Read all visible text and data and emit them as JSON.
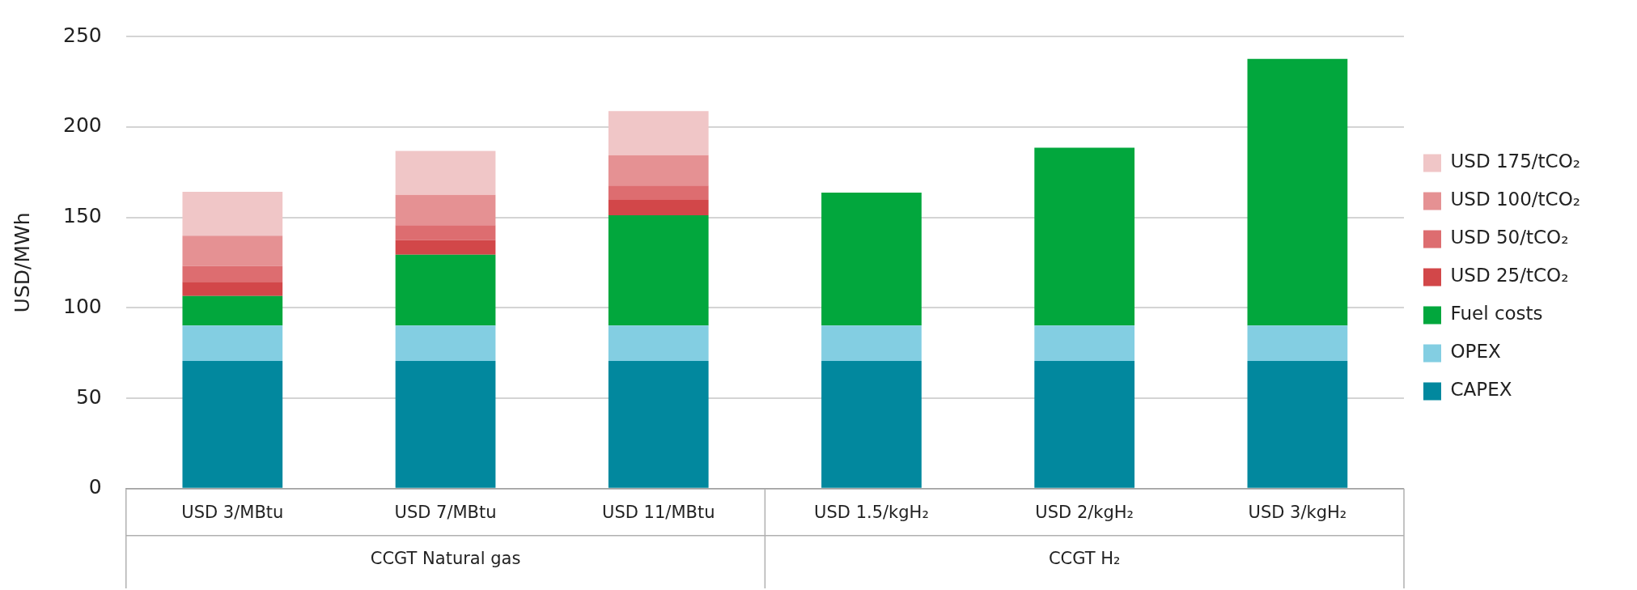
{
  "chart_data": {
    "type": "bar",
    "stacked": true,
    "ylabel": "USD/MWh",
    "categories": [
      "USD 3/MBtu",
      "USD 7/MBtu",
      "USD 11/MBtu",
      "USD 1.5/kgH₂",
      "USD 2/kgH₂",
      "USD 3/kgH₂"
    ],
    "annotations": [
      "CCGT Natural gas",
      "CCGT H₂"
    ],
    "series": [
      {
        "name": "CAPEX",
        "color": "#02889e",
        "values": [
          70.6,
          70.6,
          70.6,
          70.6,
          70.6,
          70.6
        ]
      },
      {
        "name": "OPEX",
        "color": "#83cee2",
        "values": [
          19.6,
          19.6,
          19.6,
          19.6,
          19.6,
          19.6
        ]
      },
      {
        "name": "Fuel costs",
        "color": "#02a73d",
        "values": [
          16.3,
          39.1,
          60.9,
          73.5,
          98.3,
          147.4
        ]
      },
      {
        "name": "USD 25/tCO₂",
        "color": "#d24749",
        "values": [
          7.8,
          8.1,
          8.5,
          null,
          null,
          null
        ]
      },
      {
        "name": "USD 50/tCO₂",
        "color": "#dd6d70",
        "values": [
          8.7,
          8.3,
          8.0,
          null,
          null,
          null
        ]
      },
      {
        "name": "USD 100/tCO₂",
        "color": "#e59193",
        "values": [
          16.8,
          16.7,
          16.7,
          null,
          null,
          null
        ]
      },
      {
        "name": "USD 175/tCO₂",
        "color": "#f0c6c7",
        "values": [
          24.3,
          24.3,
          24.4,
          null,
          null,
          null
        ]
      }
    ],
    "ylim": [
      0,
      250
    ],
    "yticks": [
      0,
      50,
      100,
      150,
      200,
      250
    ],
    "grid": "y",
    "legend": "right"
  }
}
